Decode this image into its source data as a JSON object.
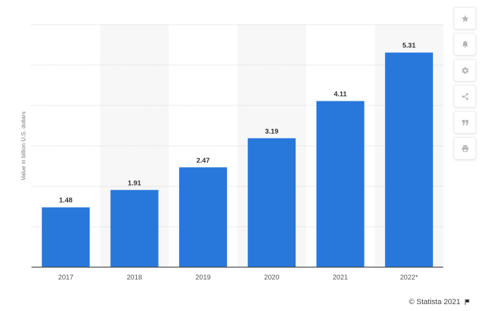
{
  "chart_data": {
    "type": "bar",
    "categories": [
      "2017",
      "2018",
      "2019",
      "2020",
      "2021",
      "2022*"
    ],
    "values": [
      1.48,
      1.91,
      2.47,
      3.19,
      4.11,
      5.31
    ],
    "data_labels": [
      "1.48",
      "1.91",
      "2.47",
      "3.19",
      "4.11",
      "5.31"
    ],
    "ylabel": "Value in billion U.S. dollars",
    "ylim": [
      0,
      6
    ],
    "grid": true,
    "bar_color": "#2878dc"
  },
  "credit": "© Statista 2021",
  "toolbar": {
    "icons": [
      "star-icon",
      "bell-icon",
      "gear-icon",
      "share-icon",
      "quote-icon",
      "print-icon"
    ]
  }
}
